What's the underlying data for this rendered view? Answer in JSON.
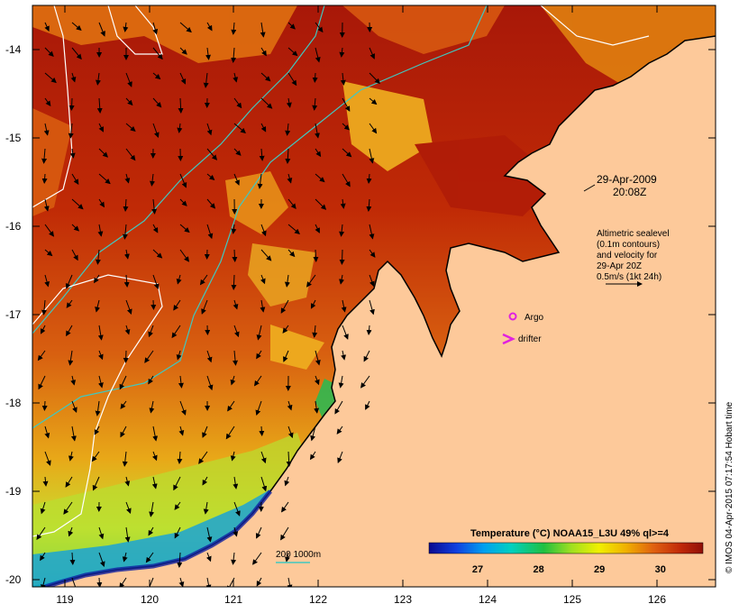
{
  "map": {
    "lat_ticks": [
      "-14",
      "-15",
      "-16",
      "-17",
      "-18",
      "-19",
      "-20"
    ],
    "lon_ticks": [
      "119",
      "120",
      "121",
      "122",
      "123",
      "124",
      "125",
      "126"
    ]
  },
  "timestamp": {
    "date": "29-Apr-2009",
    "time": "20:08Z"
  },
  "altimetry_note": {
    "line1": "Altimetric sealevel",
    "line2": "(0.1m contours)",
    "line3": "and velocity for",
    "line4": "29-Apr 20Z",
    "line5": "0.5m/s (1kt 24h)"
  },
  "legend": {
    "argo": "Argo",
    "drifter": "drifter",
    "isobaths": "200  1000m",
    "colorbar_title": "Temperature (°C) NOAA15_L3U 49% ql>=4",
    "colorbar_ticks": [
      "27",
      "28",
      "29",
      "30"
    ],
    "colorbar_range": [
      26.2,
      30.7
    ]
  },
  "credit": "© IMOS 04-Apr-2015 07:17:54 Hobart time",
  "colors": {
    "land": "#fdc99a",
    "argo_marker": "#e020e0",
    "isobath_200": "#40c8c0",
    "isobath_1000": "#60c0b8",
    "contour": "#ffffff"
  }
}
